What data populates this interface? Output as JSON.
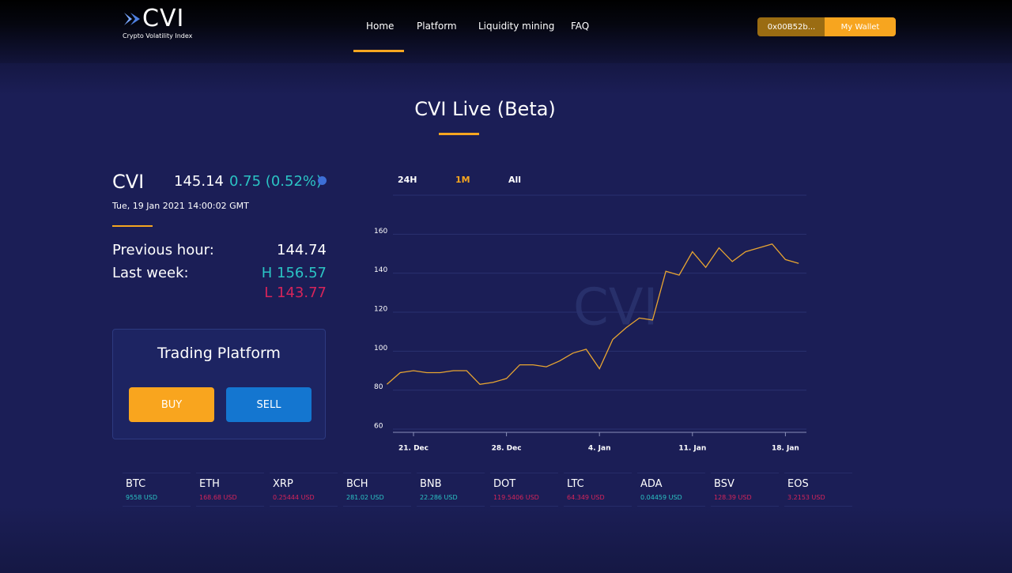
{
  "header": {
    "logo": "CVI",
    "logo_subtitle": "Crypto Volatility Index",
    "nav": [
      "Home",
      "Platform",
      "Liquidity mining",
      "FAQ"
    ],
    "address": "0x00B52b...",
    "wallet_button": "My Wallet"
  },
  "page_title": "CVI Live (Beta)",
  "index": {
    "name": "CVI",
    "value": 145.14,
    "change": "0.75 (0.52%)",
    "timestamp": "Tue, 19 Jan 2021 14:00:02 GMT",
    "previous_hour_label": "Previous hour:",
    "previous_hour": 144.74,
    "last_week_label": "Last week:",
    "high": "H 156.57",
    "low": "L 143.77"
  },
  "trading": {
    "title": "Trading Platform",
    "buy": "BUY",
    "sell": "SELL"
  },
  "chart_data": {
    "type": "line",
    "range_options": [
      "24H",
      "1M",
      "All"
    ],
    "selected_range": "1M",
    "watermark": "CVI",
    "categories": [
      null,
      null,
      "21. Dec",
      null,
      null,
      null,
      null,
      null,
      null,
      "28. Dec",
      null,
      null,
      null,
      null,
      null,
      null,
      "4. Jan",
      null,
      null,
      null,
      null,
      null,
      null,
      "11. Jan",
      null,
      null,
      null,
      null,
      null,
      null,
      "18. Jan",
      null
    ],
    "series": [
      {
        "name": "CVI",
        "color": "#e8a531",
        "values": [
          83,
          89,
          90,
          89,
          89,
          90,
          90,
          83,
          84,
          86,
          93,
          93,
          92,
          95,
          99,
          101,
          91,
          106,
          112,
          117,
          116,
          141,
          139,
          151,
          143,
          153,
          146,
          151,
          153,
          155,
          147,
          145
        ]
      }
    ],
    "ylim": [
      60,
      180
    ],
    "yticks": [
      60,
      80,
      100,
      120,
      140,
      160
    ],
    "grid": true
  },
  "tickers": [
    {
      "symbol": "BTC",
      "price": "9558 USD",
      "color": "#2bc4c4"
    },
    {
      "symbol": "ETH",
      "price": "168.68 USD",
      "color": "#d6245a"
    },
    {
      "symbol": "XRP",
      "price": "0.25444 USD",
      "color": "#d6245a"
    },
    {
      "symbol": "BCH",
      "price": "281.02 USD",
      "color": "#2bc4c4"
    },
    {
      "symbol": "BNB",
      "price": "22.286 USD",
      "color": "#2bc4c4"
    },
    {
      "symbol": "DOT",
      "price": "119.5406 USD",
      "color": "#d6245a"
    },
    {
      "symbol": "LTC",
      "price": "64.349 USD",
      "color": "#d6245a"
    },
    {
      "symbol": "ADA",
      "price": "0.04459 USD",
      "color": "#2bc4c4"
    },
    {
      "symbol": "BSV",
      "price": "128.39 USD",
      "color": "#d6245a"
    },
    {
      "symbol": "EOS",
      "price": "3.2153 USD",
      "color": "#d6245a"
    }
  ]
}
